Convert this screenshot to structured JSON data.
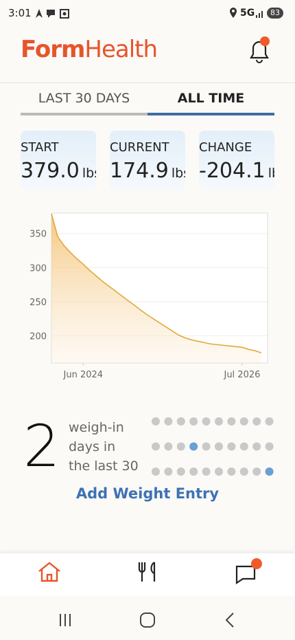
{
  "status_bar": {
    "time": "3:01",
    "network": "5G",
    "battery": "83"
  },
  "header": {
    "logo_bold": "Form",
    "logo_light": "Health"
  },
  "tabs": [
    {
      "label": "LAST 30 DAYS",
      "active": false
    },
    {
      "label": "ALL TIME",
      "active": true
    }
  ],
  "stats": [
    {
      "label": "START",
      "value": "379.0",
      "unit": "lbs"
    },
    {
      "label": "CURRENT",
      "value": "174.9",
      "unit": "lbs"
    },
    {
      "label": "CHANGE",
      "value": "-204.1",
      "unit": "lbs"
    }
  ],
  "chart": {
    "type": "line",
    "color": "#e3a83a",
    "x": [
      "2024-01",
      "2024-02",
      "2024-03",
      "2024-04",
      "2024-05",
      "2024-06",
      "2024-07",
      "2024-08",
      "2024-09",
      "2024-10",
      "2024-11",
      "2024-12",
      "2025-01",
      "2025-02",
      "2025-03",
      "2025-04",
      "2025-05",
      "2025-06",
      "2025-07",
      "2025-08",
      "2025-09",
      "2025-10",
      "2025-11",
      "2025-12",
      "2026-01",
      "2026-02",
      "2026-03",
      "2026-04",
      "2026-05",
      "2026-06",
      "2026-07",
      "2026-08",
      "2026-09",
      "2026-10"
    ],
    "values": [
      379,
      345,
      332,
      322,
      313,
      305,
      296,
      288,
      280,
      273,
      266,
      259,
      252,
      245,
      238,
      231,
      225,
      219,
      213,
      207,
      201,
      197,
      194,
      192,
      190,
      188,
      187,
      186,
      185,
      184,
      183,
      180,
      178,
      174.9
    ],
    "xlim": [
      "2024-01",
      "2026-11"
    ],
    "xticks": [
      {
        "value": "2024-06",
        "label": "Jun 2024"
      },
      {
        "value": "2026-07",
        "label": "Jul 2026"
      }
    ],
    "ylim": [
      160,
      380
    ],
    "yticks": [
      200,
      250,
      300,
      350
    ],
    "grid": true
  },
  "weigh_ins": {
    "count": "2",
    "label_lines": [
      "weigh-in",
      "days in",
      "the last 30"
    ],
    "days": [
      false,
      false,
      false,
      false,
      false,
      false,
      false,
      false,
      false,
      false,
      false,
      false,
      false,
      true,
      false,
      false,
      false,
      false,
      false,
      false,
      false,
      false,
      false,
      false,
      false,
      false,
      false,
      false,
      false,
      true
    ]
  },
  "action": "Add Weight Entry"
}
